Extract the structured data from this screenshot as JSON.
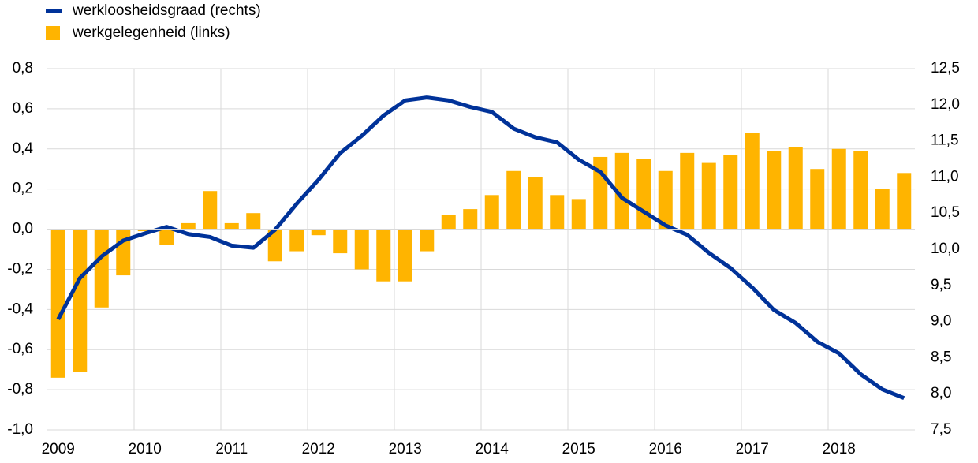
{
  "chart_data": {
    "type": "bar-line",
    "categories": [
      "2009",
      null,
      null,
      null,
      "2010",
      null,
      null,
      null,
      "2011",
      null,
      null,
      null,
      "2012",
      null,
      null,
      null,
      "2013",
      null,
      null,
      null,
      "2014",
      null,
      null,
      null,
      "2015",
      null,
      null,
      null,
      "2016",
      null,
      null,
      null,
      "2017",
      null,
      null,
      null,
      "2018",
      null,
      null,
      null
    ],
    "series": [
      {
        "name": "werkloosheidsgraad (rechts)",
        "type": "line",
        "axis": "y2",
        "color": "#003299",
        "values": [
          9.03,
          9.6,
          9.9,
          10.12,
          10.22,
          10.31,
          10.21,
          10.17,
          10.05,
          10.02,
          10.27,
          10.63,
          10.96,
          11.33,
          11.57,
          11.85,
          12.06,
          12.1,
          12.06,
          11.97,
          11.9,
          11.67,
          11.55,
          11.48,
          11.24,
          11.07,
          10.71,
          10.52,
          10.33,
          10.2,
          9.95,
          9.74,
          9.47,
          9.16,
          8.98,
          8.72,
          8.56,
          8.27,
          8.06,
          7.94
        ]
      },
      {
        "name": "werkgelegenheid (links)",
        "type": "bar",
        "axis": "y",
        "color": "#ffb400",
        "values": [
          -0.74,
          -0.71,
          -0.39,
          -0.23,
          -0.01,
          -0.08,
          0.03,
          0.19,
          0.03,
          0.08,
          -0.16,
          -0.11,
          -0.03,
          -0.12,
          -0.2,
          -0.26,
          -0.26,
          -0.11,
          0.07,
          0.1,
          0.17,
          0.29,
          0.26,
          0.17,
          0.15,
          0.36,
          0.38,
          0.35,
          0.29,
          0.38,
          0.33,
          0.37,
          0.48,
          0.39,
          0.41,
          0.3,
          0.4,
          0.39,
          0.2,
          0.28
        ]
      }
    ],
    "ylim": [
      -1.0,
      0.8
    ],
    "yticks": [
      {
        "value": -1.0,
        "label": "-1,0"
      },
      {
        "value": -0.8,
        "label": "-0,8"
      },
      {
        "value": -0.6,
        "label": "-0,6"
      },
      {
        "value": -0.4,
        "label": "-0,4"
      },
      {
        "value": -0.2,
        "label": "-0,2"
      },
      {
        "value": 0.0,
        "label": "0,0"
      },
      {
        "value": 0.2,
        "label": "0,2"
      },
      {
        "value": 0.4,
        "label": "0,4"
      },
      {
        "value": 0.6,
        "label": "0,6"
      },
      {
        "value": 0.8,
        "label": "0,8"
      }
    ],
    "y2lim": [
      7.5,
      12.5
    ],
    "y2ticks": [
      {
        "value": 7.5,
        "label": "7,5"
      },
      {
        "value": 8.0,
        "label": "8,0"
      },
      {
        "value": 8.5,
        "label": "8,5"
      },
      {
        "value": 9.0,
        "label": "9,0"
      },
      {
        "value": 9.5,
        "label": "9,5"
      },
      {
        "value": 10.0,
        "label": "10,0"
      },
      {
        "value": 10.5,
        "label": "10,5"
      },
      {
        "value": 11.0,
        "label": "11,0"
      },
      {
        "value": 11.5,
        "label": "11,5"
      },
      {
        "value": 12.0,
        "label": "12,0"
      },
      {
        "value": 12.5,
        "label": "12,5"
      }
    ],
    "grid": true,
    "legend": "top-left"
  }
}
